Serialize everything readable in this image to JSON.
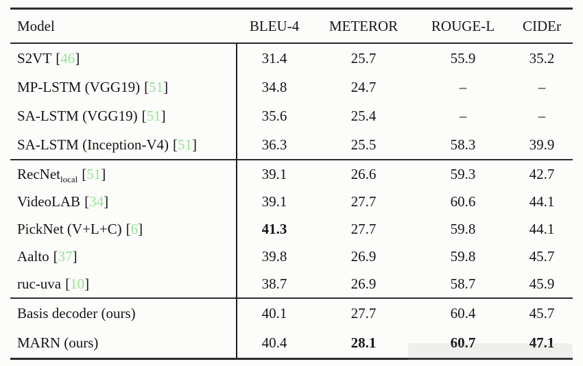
{
  "table": {
    "columns": [
      "Model",
      "BLEU-4",
      "METEROR",
      "ROUGE-L",
      "CIDEr"
    ],
    "accent_green": "#93e493",
    "groups": [
      {
        "rows": [
          {
            "model": {
              "name": "S2VT",
              "open": "[",
              "cite": "46",
              "close": "]"
            },
            "values": [
              "31.4",
              "25.7",
              "55.9",
              "35.2"
            ]
          },
          {
            "model": {
              "name": "MP-LSTM (VGG19)",
              "open": "[",
              "cite": "51",
              "close": "]"
            },
            "values": [
              "34.8",
              "24.7",
              "–",
              "–"
            ]
          },
          {
            "model": {
              "name": "SA-LSTM (VGG19)",
              "open": "[",
              "cite": "51",
              "close": "]"
            },
            "values": [
              "35.6",
              "25.4",
              "–",
              "–"
            ]
          },
          {
            "model": {
              "name": "SA-LSTM (Inception-V4)",
              "open": "[",
              "cite": "51",
              "close": "]"
            },
            "values": [
              "36.3",
              "25.5",
              "58.3",
              "39.9"
            ]
          }
        ]
      },
      {
        "rows": [
          {
            "model": {
              "name": "RecNet",
              "sub": "local",
              "open": "[",
              "cite": "51",
              "close": "]"
            },
            "values": [
              "39.1",
              "26.6",
              "59.3",
              "42.7"
            ]
          },
          {
            "model": {
              "name": "VideoLAB",
              "open": "[",
              "cite": "34",
              "close": "]"
            },
            "values": [
              "39.1",
              "27.7",
              "60.6",
              "44.1"
            ]
          },
          {
            "model": {
              "name": "PickNet (V+L+C)",
              "open": "[",
              "cite": "6",
              "close": "]"
            },
            "values": [
              "41.3",
              "27.7",
              "59.8",
              "44.1"
            ]
          },
          {
            "model": {
              "name": "Aalto",
              "open": "[",
              "cite": "37",
              "close": "]"
            },
            "values": [
              "39.8",
              "26.9",
              "59.8",
              "45.7"
            ]
          },
          {
            "model": {
              "name": "ruc-uva",
              "open": "[",
              "cite": "10",
              "close": "]"
            },
            "values": [
              "38.7",
              "26.9",
              "58.7",
              "45.9"
            ]
          }
        ]
      },
      {
        "rows": [
          {
            "model": {
              "name": "Basis decoder (ours)"
            },
            "values": [
              "40.1",
              "27.7",
              "60.4",
              "45.7"
            ]
          },
          {
            "model": {
              "name": "MARN (ours)"
            },
            "values": [
              "40.4",
              "28.1",
              "60.7",
              "47.1"
            ]
          }
        ]
      }
    ]
  }
}
